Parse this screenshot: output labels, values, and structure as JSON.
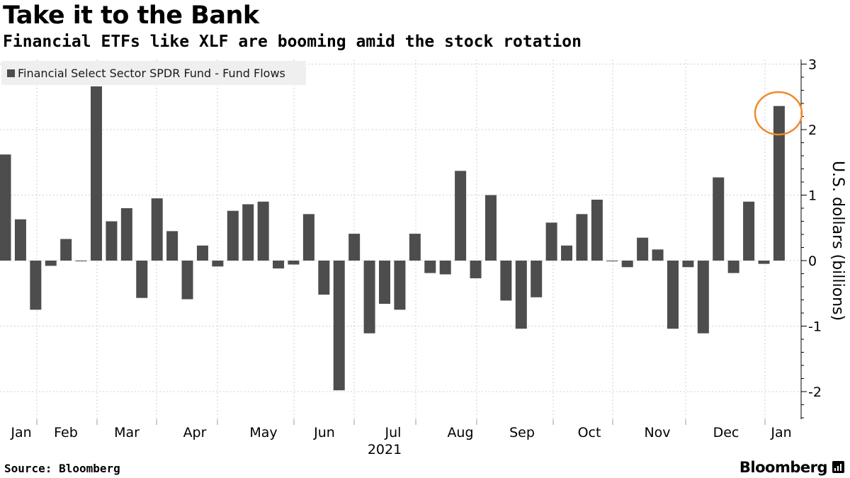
{
  "title": "Take it to the Bank",
  "subtitle": "Financial ETFs like XLF are booming amid the stock rotation",
  "footer": {
    "source": "Source: Bloomberg",
    "brand": "Bloomberg"
  },
  "colors": {
    "bar": "#4d4d4d",
    "grid": "#cfcfcf",
    "highlight": "#f08a2a",
    "legend_bg": "#efefef"
  },
  "chart_data": {
    "type": "bar",
    "legend": [
      "Financial Select Sector SPDR Fund - Fund Flows"
    ],
    "legend_position": "top-left",
    "ylabel": "U.S. dollars (billions)",
    "ylim": [
      -2.4,
      3.1
    ],
    "y_ticks": [
      3,
      2,
      1,
      0,
      -1,
      -2
    ],
    "y_axis_position": "right",
    "x_tick_labels": [
      "Jan",
      "Feb",
      "Mar",
      "Apr",
      "May",
      "Jun",
      "Jul",
      "Aug",
      "Sep",
      "Oct",
      "Nov",
      "Dec",
      "Jan"
    ],
    "x_year_label": "2021",
    "grid": true,
    "highlight": "last bar circled",
    "series": [
      {
        "name": "Financial Select Sector SPDR Fund - Fund Flows",
        "values": [
          1.62,
          0.63,
          -0.75,
          -0.08,
          0.33,
          -0.01,
          2.66,
          0.6,
          0.8,
          -0.57,
          0.95,
          0.45,
          -0.59,
          0.23,
          -0.09,
          0.76,
          0.86,
          0.9,
          -0.12,
          -0.06,
          0.71,
          -0.52,
          -1.98,
          0.41,
          -1.11,
          -0.66,
          -0.75,
          0.41,
          -0.19,
          -0.21,
          1.37,
          -0.27,
          1.0,
          -0.61,
          -1.04,
          -0.56,
          0.58,
          0.23,
          0.71,
          0.93,
          -0.01,
          -0.1,
          0.35,
          0.17,
          -1.04,
          -0.1,
          -1.11,
          1.27,
          -0.19,
          0.9,
          -0.05,
          2.36
        ]
      }
    ]
  }
}
